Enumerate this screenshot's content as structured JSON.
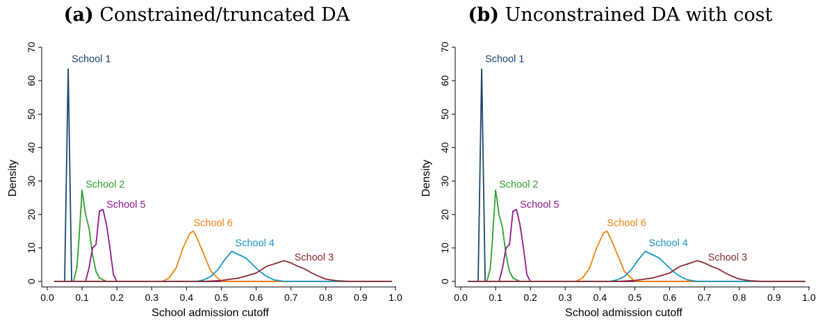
{
  "chart_data": [
    {
      "type": "line",
      "panel_tag": "(a)",
      "title": "Constrained/truncated DA",
      "xlabel": "School admission cutoff",
      "ylabel": "Density",
      "xlim": [
        0.0,
        1.0
      ],
      "ylim": [
        0,
        70
      ],
      "xticks": [
        "0.0",
        "0.1",
        "0.2",
        "0.3",
        "0.4",
        "0.5",
        "0.6",
        "0.7",
        "0.8",
        "0.9",
        "1.0"
      ],
      "yticks": [
        "0",
        "10",
        "20",
        "30",
        "40",
        "50",
        "60",
        "70"
      ],
      "grid": false,
      "series": [
        {
          "name": "School 1",
          "color": "#1a476f",
          "x": [
            0.02,
            0.05,
            0.06,
            0.07,
            0.085,
            0.2,
            0.99
          ],
          "y": [
            0,
            0,
            63.5,
            0,
            0,
            0,
            0
          ]
        },
        {
          "name": "School 2",
          "color": "#2ca02c",
          "x": [
            0.02,
            0.075,
            0.085,
            0.09,
            0.1,
            0.11,
            0.12,
            0.13,
            0.14,
            0.15,
            0.17,
            0.99
          ],
          "y": [
            0,
            0,
            4,
            11,
            27.3,
            20,
            16,
            8,
            3,
            1,
            0,
            0
          ]
        },
        {
          "name": "School 5",
          "color": "#90178f",
          "x": [
            0.02,
            0.11,
            0.12,
            0.13,
            0.14,
            0.15,
            0.16,
            0.17,
            0.18,
            0.19,
            0.2,
            0.99
          ],
          "y": [
            0,
            0,
            4,
            10,
            11,
            21,
            21.5,
            17,
            10,
            2,
            0,
            0
          ]
        },
        {
          "name": "School 6",
          "color": "#f0830e",
          "x": [
            0.02,
            0.33,
            0.35,
            0.37,
            0.39,
            0.41,
            0.42,
            0.43,
            0.45,
            0.47,
            0.49,
            0.5,
            0.99
          ],
          "y": [
            0,
            0,
            1,
            4,
            10,
            14.5,
            15,
            13,
            8,
            3,
            1,
            0,
            0
          ]
        },
        {
          "name": "School 4",
          "color": "#1797c3",
          "x": [
            0.02,
            0.43,
            0.45,
            0.47,
            0.49,
            0.51,
            0.53,
            0.55,
            0.57,
            0.59,
            0.61,
            0.63,
            0.65,
            0.68,
            0.99
          ],
          "y": [
            0,
            0,
            0.5,
            1.5,
            3.5,
            6.5,
            9,
            8,
            7,
            5,
            3,
            1.5,
            0.5,
            0,
            0
          ]
        },
        {
          "name": "School 3",
          "color": "#8b2a30",
          "x": [
            0.02,
            0.45,
            0.5,
            0.55,
            0.6,
            0.63,
            0.66,
            0.68,
            0.7,
            0.72,
            0.74,
            0.76,
            0.78,
            0.8,
            0.83,
            0.87,
            0.99
          ],
          "y": [
            0,
            0,
            0.3,
            1,
            2.5,
            4.5,
            5.5,
            6.2,
            5.5,
            4.5,
            3.7,
            2.5,
            1.5,
            0.7,
            0.2,
            0,
            0
          ]
        }
      ],
      "series_labels_at": [
        {
          "text": "School 1",
          "x": 0.07,
          "y": 65.5
        },
        {
          "text": "School 2",
          "x": 0.11,
          "y": 28
        },
        {
          "text": "School 5",
          "x": 0.17,
          "y": 22
        },
        {
          "text": "School 6",
          "x": 0.42,
          "y": 16.5
        },
        {
          "text": "School 4",
          "x": 0.54,
          "y": 10.5
        },
        {
          "text": "School 3",
          "x": 0.71,
          "y": 6.2
        }
      ]
    },
    {
      "type": "line",
      "panel_tag": "(b)",
      "title": "Unconstrained DA with cost",
      "xlabel": "School admission cutoff",
      "ylabel": "Density",
      "xlim": [
        0.0,
        1.0
      ],
      "ylim": [
        0,
        70
      ],
      "xticks": [
        "0.0",
        "0.1",
        "0.2",
        "0.3",
        "0.4",
        "0.5",
        "0.6",
        "0.7",
        "0.8",
        "0.9",
        "1.0"
      ],
      "yticks": [
        "0",
        "10",
        "20",
        "30",
        "40",
        "50",
        "60",
        "70"
      ],
      "grid": false,
      "series": [
        {
          "name": "School 1",
          "color": "#1a476f",
          "x": [
            0.02,
            0.05,
            0.06,
            0.07,
            0.085,
            0.2,
            0.99
          ],
          "y": [
            0,
            0,
            63.5,
            0,
            0,
            0,
            0
          ]
        },
        {
          "name": "School 2",
          "color": "#2ca02c",
          "x": [
            0.02,
            0.075,
            0.085,
            0.09,
            0.1,
            0.11,
            0.12,
            0.13,
            0.14,
            0.15,
            0.17,
            0.99
          ],
          "y": [
            0,
            0,
            4,
            11,
            27.3,
            20,
            16,
            8,
            3,
            1,
            0,
            0
          ]
        },
        {
          "name": "School 5",
          "color": "#90178f",
          "x": [
            0.02,
            0.11,
            0.12,
            0.13,
            0.14,
            0.15,
            0.16,
            0.17,
            0.18,
            0.19,
            0.2,
            0.99
          ],
          "y": [
            0,
            0,
            4,
            10,
            11,
            21,
            21.5,
            17,
            10,
            2,
            0,
            0
          ]
        },
        {
          "name": "School 6",
          "color": "#f0830e",
          "x": [
            0.02,
            0.33,
            0.35,
            0.37,
            0.39,
            0.41,
            0.42,
            0.43,
            0.45,
            0.47,
            0.49,
            0.5,
            0.99
          ],
          "y": [
            0,
            0,
            1,
            4,
            10,
            14.5,
            15,
            13,
            8,
            3,
            1,
            0,
            0
          ]
        },
        {
          "name": "School 4",
          "color": "#1797c3",
          "x": [
            0.02,
            0.43,
            0.45,
            0.47,
            0.49,
            0.51,
            0.53,
            0.55,
            0.57,
            0.59,
            0.61,
            0.63,
            0.65,
            0.68,
            0.99
          ],
          "y": [
            0,
            0,
            0.5,
            1.5,
            3.5,
            6.5,
            9,
            8,
            7,
            5,
            3,
            1.5,
            0.5,
            0,
            0
          ]
        },
        {
          "name": "School 3",
          "color": "#8b2a30",
          "x": [
            0.02,
            0.45,
            0.5,
            0.55,
            0.6,
            0.63,
            0.66,
            0.68,
            0.7,
            0.72,
            0.74,
            0.76,
            0.78,
            0.8,
            0.83,
            0.87,
            0.99
          ],
          "y": [
            0,
            0,
            0.3,
            1,
            2.5,
            4.5,
            5.5,
            6.2,
            5.5,
            4.5,
            3.7,
            2.5,
            1.5,
            0.7,
            0.2,
            0,
            0
          ]
        }
      ],
      "series_labels_at": [
        {
          "text": "School 1",
          "x": 0.07,
          "y": 65.5
        },
        {
          "text": "School 2",
          "x": 0.11,
          "y": 28
        },
        {
          "text": "School 5",
          "x": 0.17,
          "y": 22
        },
        {
          "text": "School 6",
          "x": 0.42,
          "y": 16.5
        },
        {
          "text": "School 4",
          "x": 0.54,
          "y": 10.5
        },
        {
          "text": "School 3",
          "x": 0.71,
          "y": 6.2
        }
      ]
    }
  ]
}
